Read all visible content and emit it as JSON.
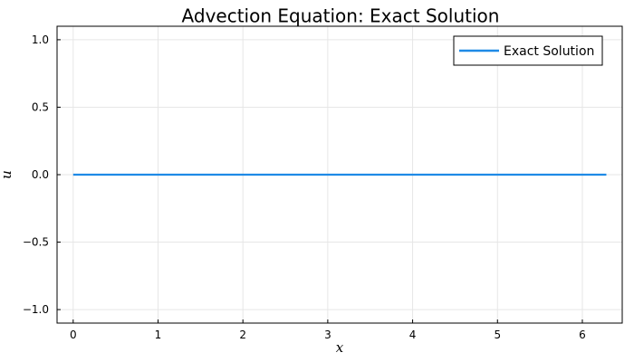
{
  "chart_data": {
    "type": "line",
    "title": "Advection Equation: Exact Solution",
    "xlabel": "x",
    "ylabel": "u",
    "xlim": [
      -0.19,
      6.47
    ],
    "ylim": [
      -1.1,
      1.1
    ],
    "xticks": [
      0,
      1,
      2,
      3,
      4,
      5,
      6
    ],
    "xtick_labels": [
      "0",
      "1",
      "2",
      "3",
      "4",
      "5",
      "6"
    ],
    "yticks": [
      -1.0,
      -0.5,
      0.0,
      0.5,
      1.0
    ],
    "ytick_labels": [
      "−1.0",
      "−0.5",
      "0.0",
      "0.5",
      "1.0"
    ],
    "grid": true,
    "legend_position": "top-right",
    "series": [
      {
        "name": "Exact Solution",
        "color": "#1f8ae6",
        "x": [
          0,
          0.5,
          1,
          1.5,
          2,
          2.5,
          3,
          3.5,
          4,
          4.5,
          5,
          5.5,
          6,
          6.283
        ],
        "y": [
          0,
          0,
          0,
          0,
          0,
          0,
          0,
          0,
          0,
          0,
          0,
          0,
          0,
          0
        ]
      }
    ]
  }
}
